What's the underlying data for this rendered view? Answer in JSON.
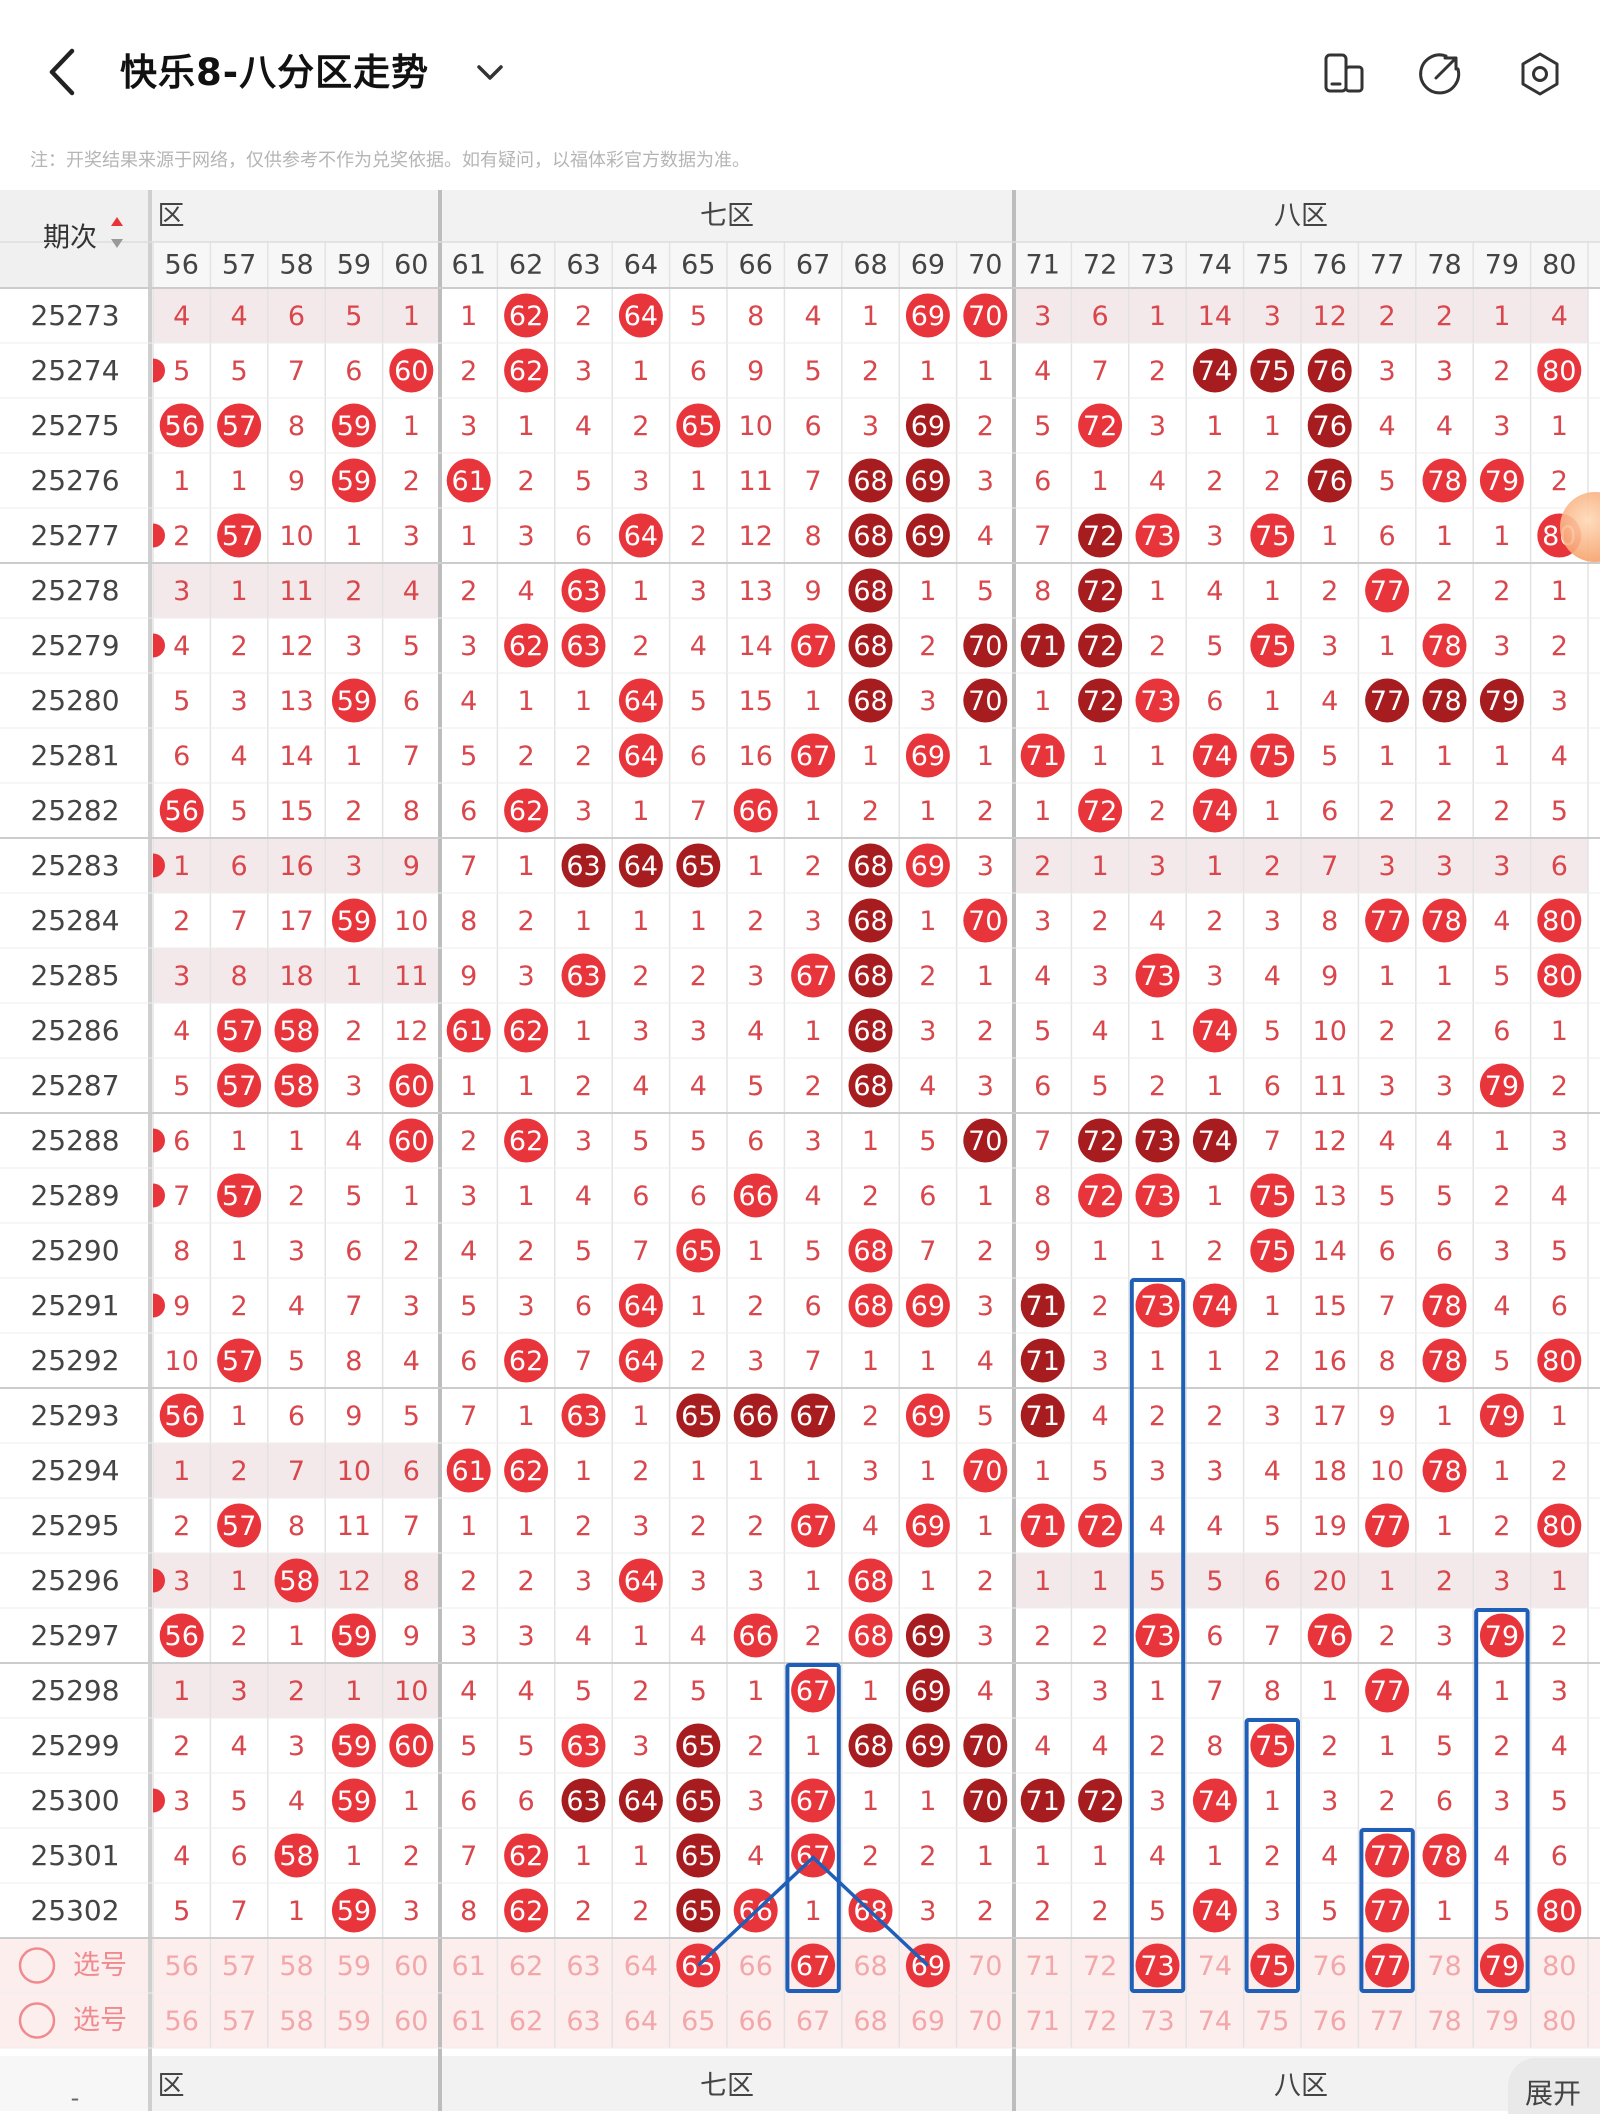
{
  "header": {
    "title": "快乐8-八分区走势",
    "back_icon": "chevron-left-icon",
    "dropdown_icon": "chevron-down-icon",
    "icons": [
      "device-layout-icon",
      "share-arrow-icon",
      "settings-gear-icon"
    ]
  },
  "notice": "注：开奖结果来源于网络，仅供参考不作为兑奖依据。如有疑问，以福体彩官方数据为准。",
  "table": {
    "period_header": "期次",
    "sort_icon": "sort-updown-icon",
    "partial_zone_label": "六区",
    "zones": [
      {
        "label": "七区",
        "from": 61,
        "to": 70
      },
      {
        "label": "八区",
        "from": 71,
        "to": 80
      }
    ],
    "columns": [
      56,
      57,
      58,
      59,
      60,
      61,
      62,
      63,
      64,
      65,
      66,
      67,
      68,
      69,
      70,
      71,
      72,
      73,
      74,
      75,
      76,
      77,
      78,
      79,
      80
    ],
    "rows": [
      {
        "period": "25273",
        "cells": [
          "4",
          "4",
          "6",
          "5",
          "1",
          "1",
          "62",
          "2",
          "64",
          "5",
          "8",
          "4",
          "1",
          "69",
          "70",
          "3",
          "6",
          "1",
          "14",
          "3",
          "12",
          "2",
          "2",
          "1",
          "4"
        ]
      },
      {
        "period": "25274",
        "cells": [
          "5",
          "5",
          "7",
          "6",
          "60",
          "2",
          "62",
          "3",
          "1",
          "6",
          "9",
          "5",
          "2",
          "1",
          "1",
          "4",
          "7",
          "2",
          "74",
          "75",
          "76",
          "3",
          "3",
          "2",
          "80"
        ]
      },
      {
        "period": "25275",
        "cells": [
          "56",
          "57",
          "8",
          "59",
          "1",
          "3",
          "1",
          "4",
          "2",
          "65",
          "10",
          "6",
          "3",
          "69",
          "2",
          "5",
          "72",
          "3",
          "1",
          "1",
          "76",
          "4",
          "4",
          "3",
          "1"
        ]
      },
      {
        "period": "25276",
        "cells": [
          "1",
          "1",
          "9",
          "59",
          "2",
          "61",
          "2",
          "5",
          "3",
          "1",
          "11",
          "7",
          "68",
          "69",
          "3",
          "6",
          "1",
          "4",
          "2",
          "2",
          "76",
          "5",
          "78",
          "79",
          "2"
        ]
      },
      {
        "period": "25277",
        "cells": [
          "2",
          "57",
          "10",
          "1",
          "3",
          "1",
          "3",
          "6",
          "64",
          "2",
          "12",
          "8",
          "68",
          "69",
          "4",
          "7",
          "72",
          "73",
          "3",
          "75",
          "1",
          "6",
          "1",
          "1",
          "80"
        ]
      },
      {
        "period": "25278",
        "cells": [
          "3",
          "1",
          "11",
          "2",
          "4",
          "2",
          "4",
          "63",
          "1",
          "3",
          "13",
          "9",
          "68",
          "1",
          "5",
          "8",
          "72",
          "1",
          "4",
          "1",
          "2",
          "77",
          "2",
          "2",
          "1"
        ]
      },
      {
        "period": "25279",
        "cells": [
          "4",
          "2",
          "12",
          "3",
          "5",
          "3",
          "62",
          "63",
          "2",
          "4",
          "14",
          "67",
          "68",
          "2",
          "70",
          "71",
          "72",
          "2",
          "5",
          "75",
          "3",
          "1",
          "78",
          "3",
          "2"
        ]
      },
      {
        "period": "25280",
        "cells": [
          "5",
          "3",
          "13",
          "59",
          "6",
          "4",
          "1",
          "1",
          "64",
          "5",
          "15",
          "1",
          "68",
          "3",
          "70",
          "1",
          "72",
          "73",
          "6",
          "1",
          "4",
          "77",
          "78",
          "79",
          "3"
        ]
      },
      {
        "period": "25281",
        "cells": [
          "6",
          "4",
          "14",
          "1",
          "7",
          "5",
          "2",
          "2",
          "64",
          "6",
          "16",
          "67",
          "1",
          "69",
          "1",
          "71",
          "1",
          "1",
          "74",
          "75",
          "5",
          "1",
          "1",
          "1",
          "4"
        ]
      },
      {
        "period": "25282",
        "cells": [
          "56",
          "5",
          "15",
          "2",
          "8",
          "6",
          "62",
          "3",
          "1",
          "7",
          "66",
          "1",
          "2",
          "1",
          "2",
          "1",
          "72",
          "2",
          "74",
          "1",
          "6",
          "2",
          "2",
          "2",
          "5"
        ]
      },
      {
        "period": "25283",
        "cells": [
          "1",
          "6",
          "16",
          "3",
          "9",
          "7",
          "1",
          "63",
          "64",
          "65",
          "1",
          "2",
          "68",
          "69",
          "3",
          "2",
          "1",
          "3",
          "1",
          "2",
          "7",
          "3",
          "3",
          "3",
          "6"
        ]
      },
      {
        "period": "25284",
        "cells": [
          "2",
          "7",
          "17",
          "59",
          "10",
          "8",
          "2",
          "1",
          "1",
          "1",
          "2",
          "3",
          "68",
          "1",
          "70",
          "3",
          "2",
          "4",
          "2",
          "3",
          "8",
          "77",
          "78",
          "4",
          "80"
        ]
      },
      {
        "period": "25285",
        "cells": [
          "3",
          "8",
          "18",
          "1",
          "11",
          "9",
          "3",
          "63",
          "2",
          "2",
          "3",
          "67",
          "68",
          "2",
          "1",
          "4",
          "3",
          "73",
          "3",
          "4",
          "9",
          "1",
          "1",
          "5",
          "80"
        ]
      },
      {
        "period": "25286",
        "cells": [
          "4",
          "57",
          "58",
          "2",
          "12",
          "61",
          "62",
          "1",
          "3",
          "3",
          "4",
          "1",
          "68",
          "3",
          "2",
          "5",
          "4",
          "1",
          "74",
          "5",
          "10",
          "2",
          "2",
          "6",
          "1"
        ]
      },
      {
        "period": "25287",
        "cells": [
          "5",
          "57",
          "58",
          "3",
          "60",
          "1",
          "1",
          "2",
          "4",
          "4",
          "5",
          "2",
          "68",
          "4",
          "3",
          "6",
          "5",
          "2",
          "1",
          "6",
          "11",
          "3",
          "3",
          "79",
          "2"
        ]
      },
      {
        "period": "25288",
        "cells": [
          "6",
          "1",
          "1",
          "4",
          "60",
          "2",
          "62",
          "3",
          "5",
          "5",
          "6",
          "3",
          "1",
          "5",
          "70",
          "7",
          "72",
          "73",
          "74",
          "7",
          "12",
          "4",
          "4",
          "1",
          "3"
        ]
      },
      {
        "period": "25289",
        "cells": [
          "7",
          "57",
          "2",
          "5",
          "1",
          "3",
          "1",
          "4",
          "6",
          "6",
          "66",
          "4",
          "2",
          "6",
          "1",
          "8",
          "72",
          "73",
          "1",
          "75",
          "13",
          "5",
          "5",
          "2",
          "4"
        ]
      },
      {
        "period": "25290",
        "cells": [
          "8",
          "1",
          "3",
          "6",
          "2",
          "4",
          "2",
          "5",
          "7",
          "65",
          "1",
          "5",
          "68",
          "7",
          "2",
          "9",
          "1",
          "1",
          "2",
          "75",
          "14",
          "6",
          "6",
          "3",
          "5"
        ]
      },
      {
        "period": "25291",
        "cells": [
          "9",
          "2",
          "4",
          "7",
          "3",
          "5",
          "3",
          "6",
          "64",
          "1",
          "2",
          "6",
          "68",
          "69",
          "3",
          "71",
          "2",
          "73",
          "74",
          "1",
          "15",
          "7",
          "78",
          "4",
          "6"
        ]
      },
      {
        "period": "25292",
        "cells": [
          "10",
          "57",
          "5",
          "8",
          "4",
          "6",
          "62",
          "7",
          "64",
          "2",
          "3",
          "7",
          "1",
          "1",
          "4",
          "71",
          "3",
          "1",
          "1",
          "2",
          "16",
          "8",
          "78",
          "5",
          "80"
        ]
      },
      {
        "period": "25293",
        "cells": [
          "56",
          "1",
          "6",
          "9",
          "5",
          "7",
          "1",
          "63",
          "1",
          "65",
          "66",
          "67",
          "2",
          "69",
          "5",
          "71",
          "4",
          "2",
          "2",
          "3",
          "17",
          "9",
          "1",
          "79",
          "1"
        ]
      },
      {
        "period": "25294",
        "cells": [
          "1",
          "2",
          "7",
          "10",
          "6",
          "61",
          "62",
          "1",
          "2",
          "1",
          "1",
          "1",
          "3",
          "1",
          "70",
          "1",
          "5",
          "3",
          "3",
          "4",
          "18",
          "10",
          "78",
          "1",
          "2"
        ]
      },
      {
        "period": "25295",
        "cells": [
          "2",
          "57",
          "8",
          "11",
          "7",
          "1",
          "1",
          "2",
          "3",
          "2",
          "2",
          "67",
          "4",
          "69",
          "1",
          "71",
          "72",
          "4",
          "4",
          "5",
          "19",
          "77",
          "1",
          "2",
          "80"
        ]
      },
      {
        "period": "25296",
        "cells": [
          "3",
          "1",
          "58",
          "12",
          "8",
          "2",
          "2",
          "3",
          "64",
          "3",
          "3",
          "1",
          "68",
          "1",
          "2",
          "1",
          "1",
          "5",
          "5",
          "6",
          "20",
          "1",
          "2",
          "3",
          "1"
        ]
      },
      {
        "period": "25297",
        "cells": [
          "56",
          "2",
          "1",
          "59",
          "9",
          "3",
          "3",
          "4",
          "1",
          "4",
          "66",
          "2",
          "68",
          "69",
          "3",
          "2",
          "2",
          "73",
          "6",
          "7",
          "76",
          "2",
          "3",
          "79",
          "2"
        ]
      },
      {
        "period": "25298",
        "cells": [
          "1",
          "3",
          "2",
          "1",
          "10",
          "4",
          "4",
          "5",
          "2",
          "5",
          "1",
          "67",
          "1",
          "69",
          "4",
          "3",
          "3",
          "1",
          "7",
          "8",
          "1",
          "77",
          "4",
          "1",
          "3"
        ]
      },
      {
        "period": "25299",
        "cells": [
          "2",
          "4",
          "3",
          "59",
          "60",
          "5",
          "5",
          "63",
          "3",
          "65",
          "2",
          "1",
          "68",
          "69",
          "70",
          "4",
          "4",
          "2",
          "8",
          "75",
          "2",
          "1",
          "5",
          "2",
          "4"
        ]
      },
      {
        "period": "25300",
        "cells": [
          "3",
          "5",
          "4",
          "59",
          "1",
          "6",
          "6",
          "63",
          "64",
          "65",
          "3",
          "67",
          "1",
          "1",
          "70",
          "71",
          "72",
          "3",
          "74",
          "1",
          "3",
          "2",
          "6",
          "3",
          "5"
        ]
      },
      {
        "period": "25301",
        "cells": [
          "4",
          "6",
          "58",
          "1",
          "2",
          "7",
          "62",
          "1",
          "1",
          "65",
          "4",
          "67",
          "2",
          "2",
          "1",
          "1",
          "1",
          "4",
          "1",
          "2",
          "4",
          "77",
          "78",
          "4",
          "6"
        ]
      },
      {
        "period": "25302",
        "cells": [
          "5",
          "7",
          "1",
          "59",
          "3",
          "8",
          "62",
          "2",
          "2",
          "65",
          "66",
          "1",
          "68",
          "3",
          "2",
          "2",
          "2",
          "5",
          "74",
          "3",
          "5",
          "77",
          "1",
          "5",
          "80"
        ]
      }
    ],
    "dark_balls": {
      "25274": [
        "74",
        "75",
        "76"
      ],
      "25275": [
        "69",
        "76"
      ],
      "25276": [
        "68",
        "69",
        "76"
      ],
      "25277": [
        "68",
        "69",
        "72"
      ],
      "25278": [
        "68",
        "72"
      ],
      "25279": [
        "68",
        "70",
        "71",
        "72"
      ],
      "25280": [
        "68",
        "70",
        "72",
        "77",
        "78",
        "79"
      ],
      "25283": [
        "63",
        "64",
        "65",
        "68"
      ],
      "25284": [
        "68"
      ],
      "25285": [
        "68"
      ],
      "25286": [
        "68"
      ],
      "25287": [
        "68"
      ],
      "25288": [
        "70",
        "72",
        "73",
        "74"
      ],
      "25291": [
        "71"
      ],
      "25292": [
        "71"
      ],
      "25293": [
        "65",
        "66",
        "67",
        "71"
      ],
      "25297": [
        "69"
      ],
      "25298": [
        "69"
      ],
      "25299": [
        "65",
        "68",
        "69",
        "70"
      ],
      "25300": [
        "63",
        "64",
        "65",
        "70",
        "71",
        "72"
      ],
      "25301": [
        "65"
      ],
      "25302": [
        "65"
      ]
    },
    "select_label": "选号",
    "selection_rows": [
      {
        "label": "选号",
        "picked": [
          "65",
          "67",
          "69",
          "73",
          "75",
          "77",
          "79"
        ]
      },
      {
        "label": "选号",
        "picked": []
      }
    ]
  },
  "expand_label": "展开",
  "colors": {
    "red_ball": "#e8353b",
    "dark_ball": "#a61c1f",
    "miss_text": "#d9464c",
    "highlight_box": "#1f5fb8",
    "row_shade": "#f4e9ea",
    "zone_header_bg": "#f2f2f2"
  }
}
